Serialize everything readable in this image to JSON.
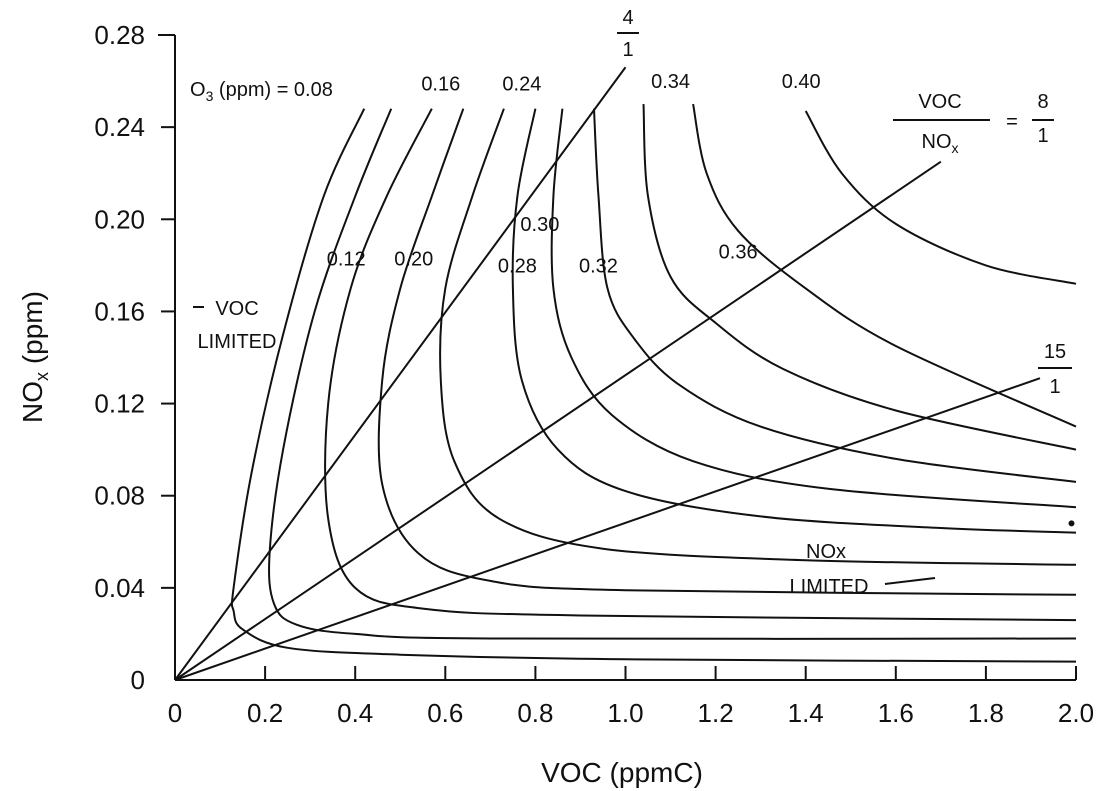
{
  "chart_data": {
    "type": "line",
    "xlabel": "VOC (ppmC)",
    "ylabel_main": "NO",
    "ylabel_sub": "x",
    "ylabel_tail": " (ppm)",
    "xlim": [
      0,
      2.0
    ],
    "ylim": [
      0,
      0.28
    ],
    "x_ticks": [
      "0",
      "0.2",
      "0.4",
      "0.6",
      "0.8",
      "1.0",
      "1.2",
      "1.4",
      "1.6",
      "1.8",
      "2.0"
    ],
    "y_ticks": [
      "0",
      "0.04",
      "0.08",
      "0.12",
      "0.16",
      "0.20",
      "0.24",
      "0.28"
    ],
    "grid": false,
    "legend": "none",
    "o3_header": {
      "o_main": "O",
      "o_sub": "3",
      "rest": " (ppm) = 0.08"
    },
    "isopleths": [
      {
        "name": "0.08",
        "label": "0.08",
        "points": [
          [
            0.42,
            0.248
          ],
          [
            0.33,
            0.21
          ],
          [
            0.24,
            0.15
          ],
          [
            0.17,
            0.09
          ],
          [
            0.13,
            0.04
          ],
          [
            0.13,
            0.03
          ],
          [
            0.15,
            0.022
          ],
          [
            0.25,
            0.014
          ],
          [
            0.5,
            0.011
          ],
          [
            1.0,
            0.009
          ],
          [
            2.0,
            0.008
          ]
        ]
      },
      {
        "name": "0.12",
        "label": "0.12",
        "points": [
          [
            0.48,
            0.248
          ],
          [
            0.4,
            0.21
          ],
          [
            0.31,
            0.16
          ],
          [
            0.24,
            0.1
          ],
          [
            0.21,
            0.055
          ],
          [
            0.22,
            0.033
          ],
          [
            0.27,
            0.024
          ],
          [
            0.4,
            0.02
          ],
          [
            0.7,
            0.018
          ],
          [
            2.0,
            0.018
          ]
        ]
      },
      {
        "name": "0.16",
        "label": "0.16",
        "points": [
          [
            0.57,
            0.248
          ],
          [
            0.47,
            0.21
          ],
          [
            0.39,
            0.17
          ],
          [
            0.34,
            0.12
          ],
          [
            0.34,
            0.07
          ],
          [
            0.4,
            0.04
          ],
          [
            0.55,
            0.031
          ],
          [
            0.9,
            0.028
          ],
          [
            2.0,
            0.026
          ]
        ]
      },
      {
        "name": "0.20",
        "label": "0.20",
        "points": [
          [
            0.64,
            0.248
          ],
          [
            0.57,
            0.21
          ],
          [
            0.5,
            0.17
          ],
          [
            0.46,
            0.13
          ],
          [
            0.46,
            0.085
          ],
          [
            0.54,
            0.055
          ],
          [
            0.7,
            0.043
          ],
          [
            1.0,
            0.039
          ],
          [
            2.0,
            0.037
          ]
        ]
      },
      {
        "name": "0.24",
        "label": "0.24",
        "points": [
          [
            0.73,
            0.248
          ],
          [
            0.66,
            0.21
          ],
          [
            0.6,
            0.17
          ],
          [
            0.59,
            0.13
          ],
          [
            0.62,
            0.095
          ],
          [
            0.72,
            0.07
          ],
          [
            0.95,
            0.057
          ],
          [
            1.4,
            0.052
          ],
          [
            2.0,
            0.05
          ]
        ]
      },
      {
        "name": "0.28",
        "label": "0.28",
        "points": [
          [
            0.8,
            0.248
          ],
          [
            0.76,
            0.21
          ],
          [
            0.75,
            0.17
          ],
          [
            0.77,
            0.13
          ],
          [
            0.85,
            0.1
          ],
          [
            1.0,
            0.082
          ],
          [
            1.3,
            0.071
          ],
          [
            1.7,
            0.066
          ],
          [
            2.0,
            0.064
          ]
        ]
      },
      {
        "name": "0.30",
        "label": "0.30",
        "points": [
          [
            0.86,
            0.248
          ],
          [
            0.84,
            0.21
          ],
          [
            0.84,
            0.17
          ],
          [
            0.88,
            0.14
          ],
          [
            0.97,
            0.115
          ],
          [
            1.15,
            0.095
          ],
          [
            1.45,
            0.083
          ],
          [
            2.0,
            0.075
          ]
        ]
      },
      {
        "name": "0.32",
        "label": "0.32",
        "points": [
          [
            0.93,
            0.248
          ],
          [
            0.94,
            0.21
          ],
          [
            0.96,
            0.17
          ],
          [
            1.02,
            0.148
          ],
          [
            1.12,
            0.128
          ],
          [
            1.3,
            0.11
          ],
          [
            1.6,
            0.096
          ],
          [
            2.0,
            0.086
          ]
        ]
      },
      {
        "name": "0.34",
        "label": "0.34",
        "points": [
          [
            1.04,
            0.25
          ],
          [
            1.05,
            0.21
          ],
          [
            1.1,
            0.175
          ],
          [
            1.2,
            0.155
          ],
          [
            1.35,
            0.135
          ],
          [
            1.6,
            0.117
          ],
          [
            2.0,
            0.1
          ]
        ]
      },
      {
        "name": "0.36",
        "label": "0.36",
        "points": [
          [
            1.15,
            0.25
          ],
          [
            1.18,
            0.22
          ],
          [
            1.25,
            0.195
          ],
          [
            1.4,
            0.17
          ],
          [
            1.6,
            0.145
          ],
          [
            2.0,
            0.11
          ]
        ]
      },
      {
        "name": "0.40",
        "label": "0.40",
        "points": [
          [
            1.4,
            0.247
          ],
          [
            1.48,
            0.22
          ],
          [
            1.6,
            0.198
          ],
          [
            1.8,
            0.18
          ],
          [
            2.0,
            0.172
          ]
        ]
      }
    ],
    "ratio_lines": [
      {
        "name": "4/1",
        "numerator": "4",
        "denominator": "1",
        "end": [
          1.0,
          0.266
        ]
      },
      {
        "name": "8/1",
        "numerator": "8",
        "denominator": "1",
        "prefix_top": "VOC",
        "prefix_bottom_main": "NO",
        "prefix_bottom_sub": "x",
        "equals": "=",
        "end": [
          1.7,
          0.225
        ]
      },
      {
        "name": "15/1",
        "numerator": "15",
        "denominator": "1",
        "end": [
          1.92,
          0.131
        ]
      }
    ],
    "annotations": {
      "voc_limited": [
        "VOC",
        "LIMITED"
      ],
      "nox_limited": [
        "NOx",
        "LIMITED"
      ],
      "dot": [
        1.99,
        0.068
      ]
    }
  }
}
